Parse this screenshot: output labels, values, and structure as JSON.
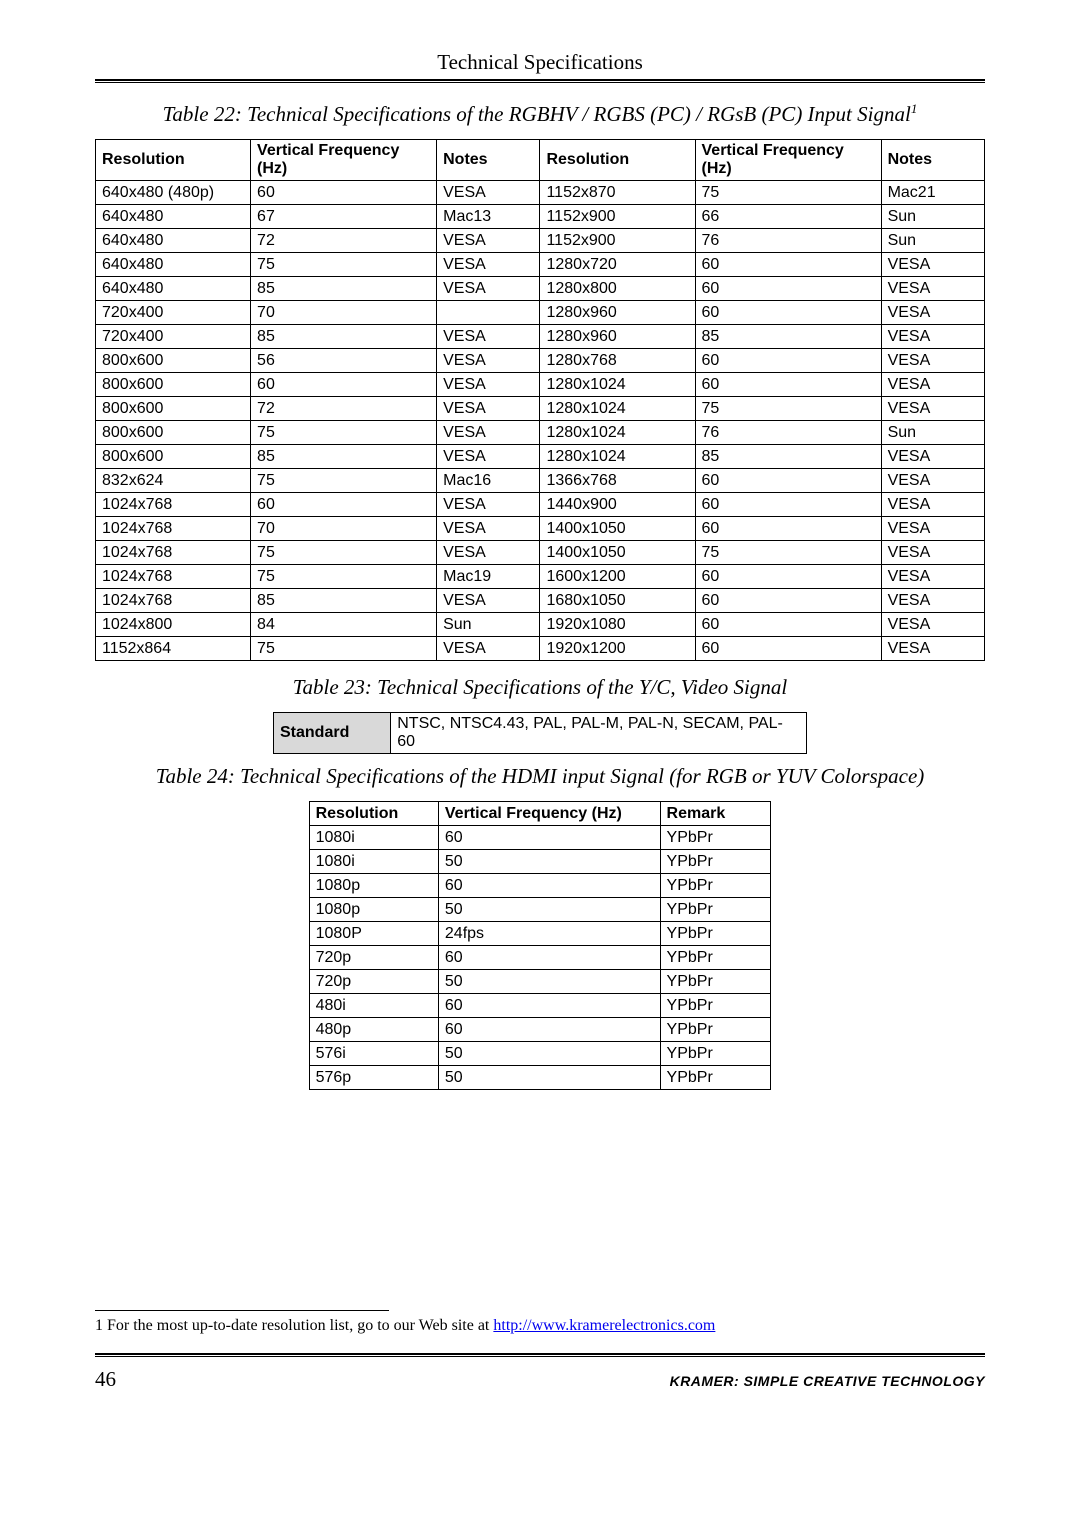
{
  "header": {
    "title": "Technical Specifications"
  },
  "table22": {
    "caption": "Table 22: Technical Specifications of the RGBHV / RGBS (PC) / RGsB (PC) Input Signal",
    "caption_sup": "1",
    "headers": [
      "Resolution",
      "Vertical Frequency (Hz)",
      "Notes",
      "Resolution",
      "Vertical Frequency (Hz)",
      "Notes"
    ],
    "rows": [
      [
        "640x480 (480p)",
        "60",
        "VESA",
        "1152x870",
        "75",
        "Mac21"
      ],
      [
        "640x480",
        "67",
        "Mac13",
        "1152x900",
        "66",
        "Sun"
      ],
      [
        "640x480",
        "72",
        "VESA",
        "1152x900",
        "76",
        "Sun"
      ],
      [
        "640x480",
        "75",
        "VESA",
        "1280x720",
        "60",
        "VESA"
      ],
      [
        "640x480",
        "85",
        "VESA",
        "1280x800",
        "60",
        "VESA"
      ],
      [
        "720x400",
        "70",
        "",
        "1280x960",
        "60",
        "VESA"
      ],
      [
        "720x400",
        "85",
        "VESA",
        "1280x960",
        "85",
        "VESA"
      ],
      [
        "800x600",
        "56",
        "VESA",
        "1280x768",
        "60",
        "VESA"
      ],
      [
        "800x600",
        "60",
        "VESA",
        "1280x1024",
        "60",
        "VESA"
      ],
      [
        "800x600",
        "72",
        "VESA",
        "1280x1024",
        "75",
        "VESA"
      ],
      [
        "800x600",
        "75",
        "VESA",
        "1280x1024",
        "76",
        "Sun"
      ],
      [
        "800x600",
        "85",
        "VESA",
        "1280x1024",
        "85",
        "VESA"
      ],
      [
        "832x624",
        "75",
        "Mac16",
        "1366x768",
        "60",
        "VESA"
      ],
      [
        "1024x768",
        "60",
        "VESA",
        "1440x900",
        "60",
        "VESA"
      ],
      [
        "1024x768",
        "70",
        "VESA",
        "1400x1050",
        "60",
        "VESA"
      ],
      [
        "1024x768",
        "75",
        "VESA",
        "1400x1050",
        "75",
        "VESA"
      ],
      [
        "1024x768",
        "75",
        "Mac19",
        "1600x1200",
        "60",
        "VESA"
      ],
      [
        "1024x768",
        "85",
        "VESA",
        "1680x1050",
        "60",
        "VESA"
      ],
      [
        "1024x800",
        "84",
        "Sun",
        "1920x1080",
        "60",
        "VESA"
      ],
      [
        "1152x864",
        "75",
        "VESA",
        "1920x1200",
        "60",
        "VESA"
      ]
    ]
  },
  "table23": {
    "caption": "Table 23: Technical Specifications of the Y/C, Video Signal",
    "label": "Standard",
    "value": "NTSC, NTSC4.43, PAL, PAL-M, PAL-N, SECAM, PAL-60"
  },
  "table24": {
    "caption": "Table 24: Technical Specifications of the HDMI input Signal (for RGB or YUV Colorspace)",
    "headers": [
      "Resolution",
      "Vertical Frequency (Hz)",
      "Remark"
    ],
    "rows": [
      [
        "1080i",
        "60",
        "YPbPr"
      ],
      [
        "1080i",
        "50",
        "YPbPr"
      ],
      [
        "1080p",
        "60",
        "YPbPr"
      ],
      [
        "1080p",
        "50",
        "YPbPr"
      ],
      [
        "1080P",
        "24fps",
        "YPbPr"
      ],
      [
        "720p",
        "60",
        "YPbPr"
      ],
      [
        "720p",
        "50",
        "YPbPr"
      ],
      [
        "480i",
        "60",
        "YPbPr"
      ],
      [
        "480p",
        "60",
        "YPbPr"
      ],
      [
        "576i",
        "50",
        "YPbPr"
      ],
      [
        "576p",
        "50",
        "YPbPr"
      ]
    ]
  },
  "footnote": {
    "text_prefix": "1 For the most up-to-date resolution list, go to our Web site at ",
    "link_text": "http://www.kramerelectronics.com"
  },
  "footer": {
    "page": "46",
    "right": "KRAMER:  SIMPLE CREATIVE TECHNOLOGY"
  }
}
